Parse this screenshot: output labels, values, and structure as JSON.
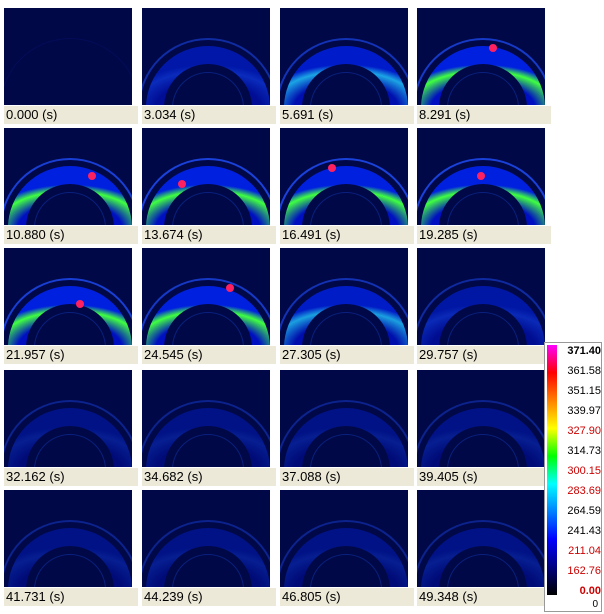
{
  "frames": [
    {
      "time": "0.000 (s)"
    },
    {
      "time": "3.034 (s)"
    },
    {
      "time": "5.691 (s)"
    },
    {
      "time": "8.291 (s)"
    },
    {
      "time": "10.880 (s)"
    },
    {
      "time": "13.674 (s)"
    },
    {
      "time": "16.491 (s)"
    },
    {
      "time": "19.285 (s)"
    },
    {
      "time": "21.957 (s)"
    },
    {
      "time": "24.545 (s)"
    },
    {
      "time": "27.305 (s)"
    },
    {
      "time": "29.757 (s)"
    },
    {
      "time": "32.162 (s)"
    },
    {
      "time": "34.682 (s)"
    },
    {
      "time": "37.088 (s)"
    },
    {
      "time": "39.405 (s)"
    },
    {
      "time": "41.731 (s)"
    },
    {
      "time": "44.239 (s)"
    },
    {
      "time": "46.805 (s)"
    },
    {
      "time": "49.348 (s)"
    }
  ],
  "colorbar": {
    "labels": [
      "371.40",
      "361.58",
      "351.15",
      "339.97",
      "327.90",
      "314.73",
      "300.15",
      "283.69",
      "264.59",
      "241.43",
      "211.04",
      "162.76",
      "0.00"
    ],
    "footer": "0"
  }
}
